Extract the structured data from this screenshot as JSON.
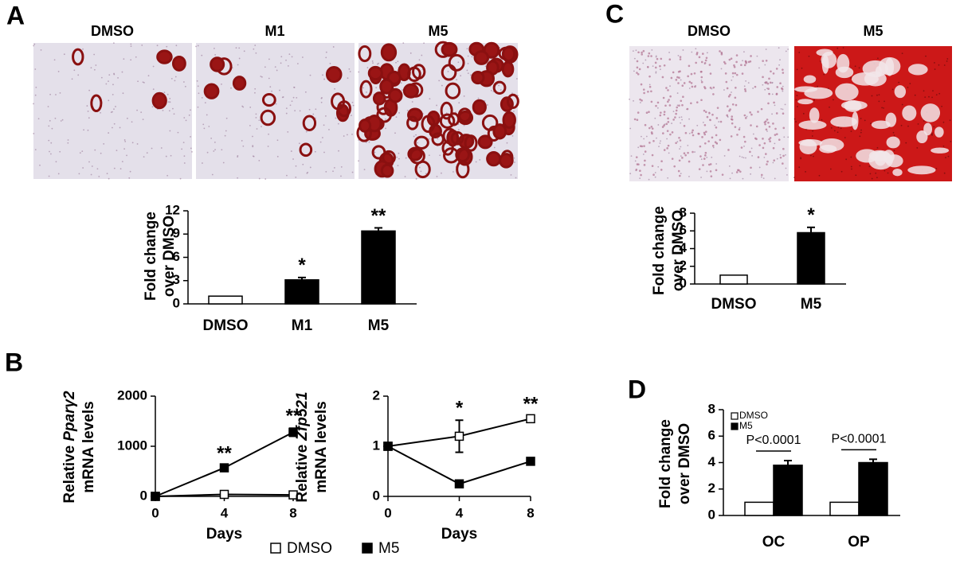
{
  "figure": {
    "panel_labels": [
      "A",
      "B",
      "C",
      "D"
    ],
    "image_labels_A": [
      "DMSO",
      "M1",
      "M5"
    ],
    "image_labels_C": [
      "DMSO",
      "M5"
    ]
  },
  "chart_data": [
    {
      "type": "bar",
      "ylabel": [
        "Fold change",
        "over DMSO"
      ],
      "categories": [
        "DMSO",
        "M1",
        "M5"
      ],
      "values": [
        1,
        3.1,
        9.4
      ],
      "errors": [
        null,
        0.3,
        0.4
      ],
      "colors": [
        "#ffffff",
        "#000000",
        "#000000"
      ],
      "ylim": [
        0,
        12
      ],
      "yticks": [
        0,
        3,
        6,
        9,
        12
      ],
      "annotations": [
        {
          "text": "*",
          "category": "M1"
        },
        {
          "text": "**",
          "category": "M5"
        }
      ]
    },
    {
      "type": "line",
      "ylabel": [
        "Relative",
        "Pparγ2",
        "mRNA levels"
      ],
      "xlabel": "Days",
      "x": [
        0,
        4,
        8
      ],
      "xlim": [
        0,
        8
      ],
      "xticks": [
        0,
        4,
        8
      ],
      "ylim": [
        0,
        2000
      ],
      "yticks": [
        0,
        1000,
        2000
      ],
      "series": [
        {
          "name": "DMSO",
          "color": "#ffffff",
          "values": [
            0,
            40,
            30
          ]
        },
        {
          "name": "M5",
          "color": "#000000",
          "values": [
            0,
            570,
            1280
          ],
          "errors": [
            null,
            50,
            80
          ]
        }
      ],
      "annotations": [
        {
          "text": "**",
          "x": 4
        },
        {
          "text": "**",
          "x": 8
        }
      ]
    },
    {
      "type": "line",
      "ylabel": [
        "Relative",
        "Zfp521",
        "mRNA levels"
      ],
      "xlabel": "Days",
      "x": [
        0,
        4,
        8
      ],
      "xlim": [
        0,
        8
      ],
      "xticks": [
        0,
        4,
        8
      ],
      "ylim": [
        0,
        2
      ],
      "yticks": [
        0,
        1,
        2
      ],
      "series": [
        {
          "color": "#ffffff",
          "values": [
            1,
            1.2,
            1.55
          ],
          "errors": [
            null,
            0.32,
            0.05
          ]
        },
        {
          "color": "#000000",
          "values": [
            1,
            0.25,
            0.7
          ],
          "errors": [
            null,
            0.05,
            0.06
          ]
        }
      ],
      "annotations": [
        {
          "text": "*",
          "x": 4
        },
        {
          "text": "**",
          "x": 8
        }
      ]
    },
    {
      "type": "bar",
      "ylabel": [
        "Fold change",
        "over DMSO"
      ],
      "categories": [
        "DMSO",
        "M5"
      ],
      "values": [
        1,
        5.8
      ],
      "errors": [
        null,
        0.6
      ],
      "colors": [
        "#ffffff",
        "#000000"
      ],
      "ylim": [
        0,
        8
      ],
      "yticks": [
        0,
        2,
        4,
        6,
        8
      ],
      "annotations": [
        {
          "text": "*",
          "category": "M5"
        }
      ]
    },
    {
      "type": "grouped_bar",
      "ylabel": [
        "Fold change",
        "over DMSO"
      ],
      "categories": [
        "OC",
        "OP"
      ],
      "series": [
        {
          "name": "DMSO",
          "color": "#ffffff",
          "values": [
            1,
            1
          ]
        },
        {
          "name": "M5",
          "color": "#000000",
          "values": [
            3.8,
            4.0
          ],
          "errors": [
            0.35,
            0.25
          ]
        }
      ],
      "ylim": [
        0,
        8
      ],
      "yticks": [
        0,
        2,
        4,
        6,
        8
      ],
      "legend": "upper left",
      "annotations": [
        {
          "text": "P<0.0001",
          "category": "OC"
        },
        {
          "text": "P<0.0001",
          "category": "OP"
        }
      ]
    }
  ]
}
